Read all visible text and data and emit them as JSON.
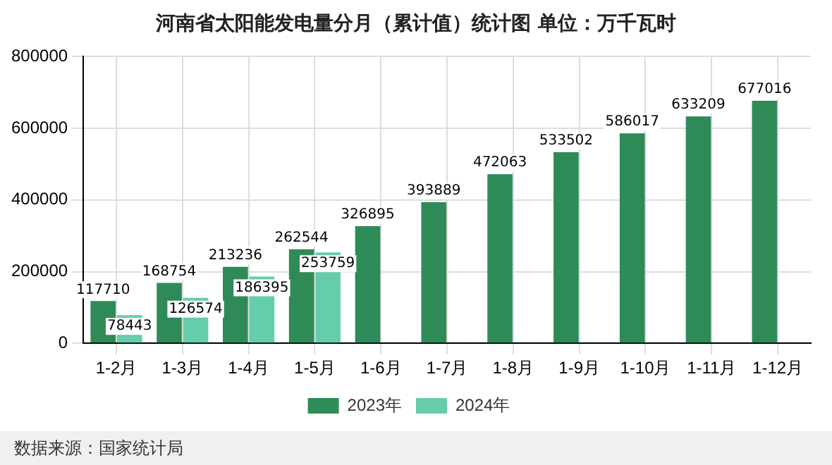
{
  "chart_data": {
    "type": "bar",
    "title": "河南省太阳能发电量分月（累计值）统计图 单位：万千瓦时",
    "categories": [
      "1-2月",
      "1-3月",
      "1-4月",
      "1-5月",
      "1-6月",
      "1-7月",
      "1-8月",
      "1-9月",
      "1-10月",
      "1-11月",
      "1-12月"
    ],
    "series": [
      {
        "name": "2023年",
        "color": "#2e8b57",
        "values": [
          117710,
          168754,
          213236,
          262544,
          326895,
          393889,
          472063,
          533502,
          586017,
          633209,
          677016
        ]
      },
      {
        "name": "2024年",
        "color": "#66cdaa",
        "values": [
          78443,
          126574,
          186395,
          253759,
          null,
          null,
          null,
          null,
          null,
          null,
          null
        ]
      }
    ],
    "ylim": [
      0,
      800000
    ],
    "yticks": [
      0,
      200000,
      400000,
      600000,
      800000
    ],
    "grid": true,
    "legend": "bottom",
    "data_labels": true,
    "annotations": [
      "数据来源：国家统计局"
    ]
  }
}
